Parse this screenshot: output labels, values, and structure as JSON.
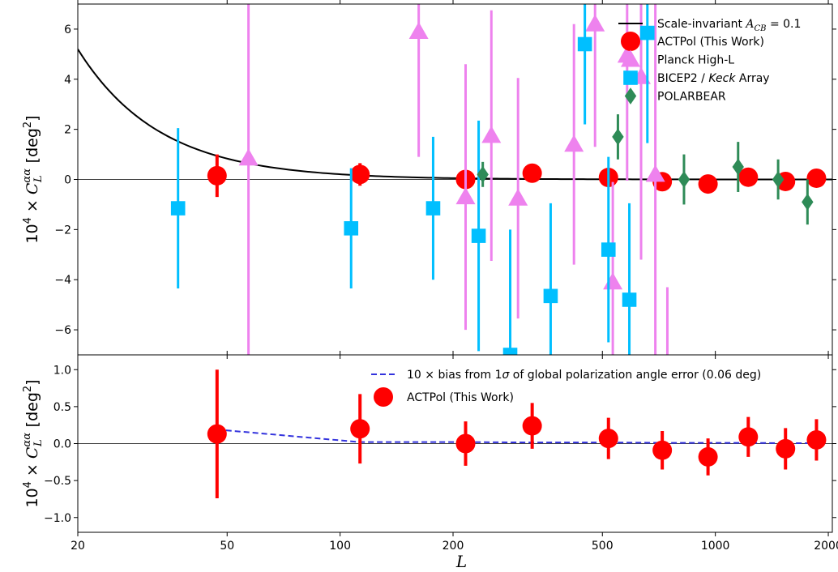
{
  "chart_data": [
    {
      "type": "scatter",
      "panel": "top",
      "xscale": "log",
      "xlim": [
        20,
        2050
      ],
      "ylim": [
        -7,
        7
      ],
      "x_ticks": [
        20,
        50,
        100,
        200,
        500,
        1000,
        2000
      ],
      "y_ticks": [
        -6,
        -4,
        -2,
        0,
        2,
        4,
        6
      ],
      "xlabel": "L",
      "ylabel_prefix": "10",
      "ylabel_prefix_sup": "4",
      "ylabel_times": "×",
      "ylabel_symbol": "C",
      "ylabel_sup": "αα",
      "ylabel_sub": "L",
      "ylabel_unit_open": "[deg",
      "ylabel_unit_sup": "2",
      "ylabel_unit_close": "]",
      "legend_position": "top-right",
      "curve": {
        "name": "Scale-invariant A",
        "name_sub": "CB",
        "name_suffix": " = 0.1",
        "color": "#000000",
        "amplitude": 5.2,
        "x_start": 20
      },
      "series": [
        {
          "name": "ACTPol (This Work)",
          "marker": "circle",
          "color": "#ff0000",
          "points": [
            {
              "x": 47,
              "y": 0.15,
              "err": 0.85
            },
            {
              "x": 113,
              "y": 0.2,
              "err": 0.45
            },
            {
              "x": 216,
              "y": 0.0,
              "err": 0.3
            },
            {
              "x": 325,
              "y": 0.25,
              "err": 0.3
            },
            {
              "x": 519,
              "y": 0.08,
              "err": 0.28
            },
            {
              "x": 722,
              "y": -0.09,
              "err": 0.25
            },
            {
              "x": 956,
              "y": -0.18,
              "err": 0.25
            },
            {
              "x": 1224,
              "y": 0.09,
              "err": 0.27
            },
            {
              "x": 1538,
              "y": -0.08,
              "err": 0.28
            },
            {
              "x": 1860,
              "y": 0.05,
              "err": 0.28
            }
          ]
        },
        {
          "name": "Planck High-L",
          "marker": "triangle",
          "color": "#ee82ee",
          "points": [
            {
              "x": 57,
              "y": 0.85,
              "err": 8.0
            },
            {
              "x": 162,
              "y": 5.9,
              "err": 5.0
            },
            {
              "x": 216,
              "y": -0.7,
              "err": 5.3
            },
            {
              "x": 253,
              "y": 1.75,
              "err": 5.0
            },
            {
              "x": 298,
              "y": -0.75,
              "err": 4.8
            },
            {
              "x": 420,
              "y": 1.4,
              "err": 4.8
            },
            {
              "x": 478,
              "y": 6.2,
              "err": 4.9
            },
            {
              "x": 533,
              "y": -4.1,
              "err": 4.0
            },
            {
              "x": 582,
              "y": 4.95,
              "err": 5.0
            },
            {
              "x": 634,
              "y": 4.1,
              "err": 7.3
            },
            {
              "x": 692,
              "y": 0.2,
              "err": 10.0
            },
            {
              "x": 745,
              "y": -7.3,
              "err": 3.0
            }
          ]
        },
        {
          "name": "BICEP2 / Keck Array",
          "marker": "square",
          "color": "#00bfff",
          "points": [
            {
              "x": 37,
              "y": -1.15,
              "err": 3.2
            },
            {
              "x": 107,
              "y": -1.95,
              "err": 2.4
            },
            {
              "x": 177,
              "y": -1.15,
              "err": 2.85
            },
            {
              "x": 234,
              "y": -2.25,
              "err": 4.6
            },
            {
              "x": 284,
              "y": -7.0,
              "err": 5.0
            },
            {
              "x": 364,
              "y": -4.65,
              "err": 3.7
            },
            {
              "x": 449,
              "y": 5.4,
              "err": 3.2
            },
            {
              "x": 519,
              "y": -2.8,
              "err": 3.7
            },
            {
              "x": 590,
              "y": -4.8,
              "err": 3.85
            },
            {
              "x": 659,
              "y": 5.85,
              "err": 4.4
            }
          ]
        },
        {
          "name": "POLARBEAR",
          "marker": "diamond",
          "color": "#2e8b57",
          "points": [
            {
              "x": 240,
              "y": 0.2,
              "err": 0.5
            },
            {
              "x": 550,
              "y": 1.7,
              "err": 0.9
            },
            {
              "x": 825,
              "y": 0.0,
              "err": 1.0
            },
            {
              "x": 1150,
              "y": 0.5,
              "err": 1.0
            },
            {
              "x": 1470,
              "y": 0.0,
              "err": 0.8
            },
            {
              "x": 1760,
              "y": -0.9,
              "err": 0.9
            }
          ]
        }
      ]
    },
    {
      "type": "scatter",
      "panel": "bottom",
      "xscale": "log",
      "xlim": [
        20,
        2050
      ],
      "ylim": [
        -1.2,
        1.2
      ],
      "x_ticks": [
        20,
        50,
        100,
        200,
        500,
        1000,
        2000
      ],
      "y_ticks": [
        -1.0,
        -0.5,
        0.0,
        0.5,
        1.0
      ],
      "xlabel": "L",
      "ylabel_prefix": "10",
      "ylabel_prefix_sup": "4",
      "ylabel_times": "×",
      "ylabel_symbol": "C",
      "ylabel_sup": "αα",
      "ylabel_sub": "L",
      "ylabel_unit_open": "[deg",
      "ylabel_unit_sup": "2",
      "ylabel_unit_close": "]",
      "legend_position": "top-right",
      "series": [
        {
          "name": "10 × bias from 1σ of global polarization angle error (0.06 deg)",
          "type": "line",
          "style": "dashed",
          "color": "#3333dd",
          "points": [
            {
              "x": 47,
              "y": 0.19
            },
            {
              "x": 113,
              "y": 0.02
            },
            {
              "x": 216,
              "y": 0.02
            },
            {
              "x": 325,
              "y": 0.015
            },
            {
              "x": 519,
              "y": 0.015
            },
            {
              "x": 722,
              "y": 0.01
            },
            {
              "x": 956,
              "y": 0.01
            },
            {
              "x": 1224,
              "y": 0.01
            },
            {
              "x": 1538,
              "y": 0.005
            },
            {
              "x": 1860,
              "y": 0.005
            }
          ]
        },
        {
          "name": "ACTPol (This Work)",
          "marker": "circle",
          "color": "#ff0000",
          "points": [
            {
              "x": 47,
              "y": 0.13,
              "err": 0.87
            },
            {
              "x": 113,
              "y": 0.2,
              "err": 0.47
            },
            {
              "x": 216,
              "y": 0.0,
              "err": 0.3
            },
            {
              "x": 325,
              "y": 0.24,
              "err": 0.31
            },
            {
              "x": 519,
              "y": 0.07,
              "err": 0.28
            },
            {
              "x": 722,
              "y": -0.09,
              "err": 0.26
            },
            {
              "x": 956,
              "y": -0.18,
              "err": 0.25
            },
            {
              "x": 1224,
              "y": 0.09,
              "err": 0.27
            },
            {
              "x": 1538,
              "y": -0.07,
              "err": 0.28
            },
            {
              "x": 1860,
              "y": 0.05,
              "err": 0.28
            }
          ]
        }
      ]
    }
  ]
}
